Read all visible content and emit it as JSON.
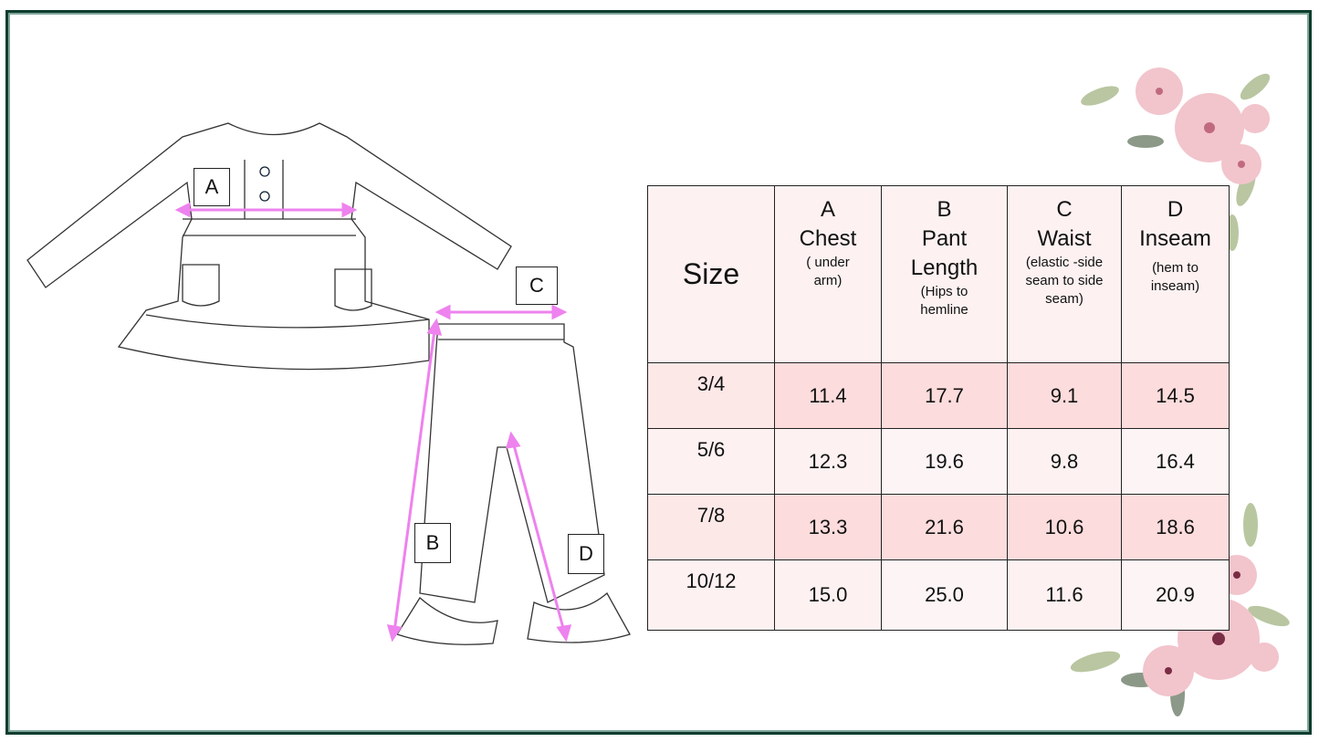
{
  "labels": {
    "a": "A",
    "b": "B",
    "c": "C",
    "d": "D"
  },
  "table": {
    "headers": [
      {
        "main": "Size",
        "sub": ""
      },
      {
        "letter": "A",
        "main": "Chest",
        "sub": "( under arm)"
      },
      {
        "letter": "B",
        "main": "Pant Length",
        "sub": "(Hips to hemline"
      },
      {
        "letter": "C",
        "main": "Waist",
        "sub": "(elastic -side seam to side seam)"
      },
      {
        "letter": "D",
        "main": "Inseam",
        "sub": "(hem to inseam)"
      }
    ],
    "rows": [
      [
        "3/4",
        "11.4",
        "17.7",
        "9.1",
        "14.5"
      ],
      [
        "5/6",
        "12.3",
        "19.6",
        "9.8",
        "16.4"
      ],
      [
        "7/8",
        "13.3",
        "21.6",
        "10.6",
        "18.6"
      ],
      [
        "10/12",
        "15.0",
        "25.0",
        "11.6",
        "20.9"
      ]
    ]
  },
  "colors": {
    "frame": "#0f3d2e",
    "arrow": "#ee82ee",
    "row_pink": "#fcdcdc",
    "row_light": "#fdf1f1"
  }
}
